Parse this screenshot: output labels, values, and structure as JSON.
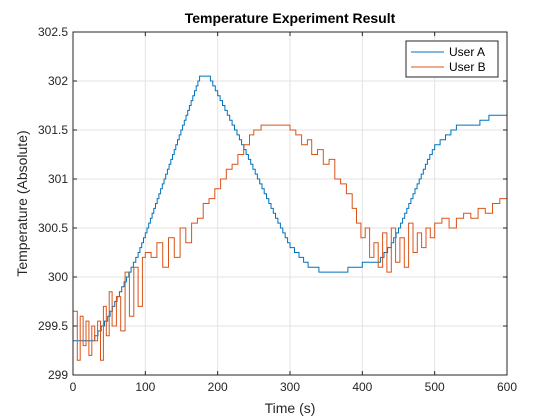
{
  "chart_data": {
    "type": "line",
    "title": "Temperature Experiment Result",
    "xlabel": "Time (s)",
    "ylabel": "Temperature (Absolute)",
    "xlim": [
      0,
      600
    ],
    "ylim": [
      299,
      302.5
    ],
    "xticks": [
      0,
      100,
      200,
      300,
      400,
      500,
      600
    ],
    "yticks": [
      299,
      299.5,
      300,
      300.5,
      301,
      301.5,
      302,
      302.5
    ],
    "grid": true,
    "legend_position": "top-right",
    "series": [
      {
        "name": "User A",
        "color": "#0072BD",
        "shape": "stairs",
        "x": [
          0,
          12,
          30,
          48,
          90,
          100,
          175,
          190,
          230,
          280,
          300,
          325,
          340,
          360,
          400,
          410,
          420,
          425,
          430,
          440,
          450,
          490,
          500,
          530,
          550,
          575,
          590,
          600
        ],
        "y": [
          299.35,
          299.35,
          299.4,
          299.6,
          300.25,
          300.45,
          302.05,
          302.0,
          301.4,
          300.6,
          300.3,
          300.1,
          300.05,
          300.05,
          300.15,
          300.15,
          300.15,
          300.2,
          300.25,
          300.35,
          300.5,
          301.2,
          301.35,
          301.55,
          301.55,
          301.65,
          301.65,
          301.65
        ]
      },
      {
        "name": "User B",
        "color": "#D95319",
        "shape": "noisy",
        "x": [
          0,
          6,
          10,
          14,
          18,
          22,
          26,
          30,
          34,
          38,
          42,
          46,
          50,
          54,
          60,
          66,
          72,
          78,
          84,
          90,
          96,
          100,
          108,
          116,
          124,
          132,
          140,
          148,
          156,
          164,
          172,
          180,
          188,
          196,
          204,
          212,
          220,
          228,
          236,
          244,
          250,
          260,
          270,
          280,
          290,
          300,
          308,
          316,
          324,
          330,
          338,
          346,
          354,
          362,
          370,
          378,
          386,
          392,
          398,
          404,
          410,
          416,
          422,
          428,
          434,
          440,
          446,
          452,
          458,
          464,
          470,
          476,
          482,
          488,
          494,
          500,
          510,
          520,
          530,
          540,
          550,
          560,
          570,
          580,
          590,
          600
        ],
        "y": [
          299.65,
          299.15,
          299.6,
          299.3,
          299.55,
          299.2,
          299.5,
          299.35,
          299.55,
          299.15,
          299.7,
          299.4,
          299.85,
          299.5,
          299.8,
          299.45,
          300.05,
          299.6,
          300.1,
          299.7,
          300.2,
          300.25,
          300.2,
          300.35,
          300.1,
          300.4,
          300.2,
          300.5,
          300.35,
          300.55,
          300.6,
          300.75,
          300.8,
          300.9,
          301.0,
          301.1,
          301.15,
          301.25,
          301.35,
          301.45,
          301.5,
          301.55,
          301.55,
          301.55,
          301.55,
          301.5,
          301.45,
          301.35,
          301.4,
          301.25,
          301.3,
          301.15,
          301.2,
          301.0,
          300.95,
          300.85,
          300.7,
          300.55,
          300.4,
          300.5,
          300.2,
          300.35,
          300.1,
          300.45,
          300.05,
          300.5,
          300.15,
          300.4,
          300.1,
          300.55,
          300.25,
          300.45,
          300.3,
          300.5,
          300.4,
          300.55,
          300.6,
          300.5,
          300.6,
          300.65,
          300.6,
          300.7,
          300.65,
          300.75,
          300.8,
          300.85
        ]
      }
    ]
  }
}
